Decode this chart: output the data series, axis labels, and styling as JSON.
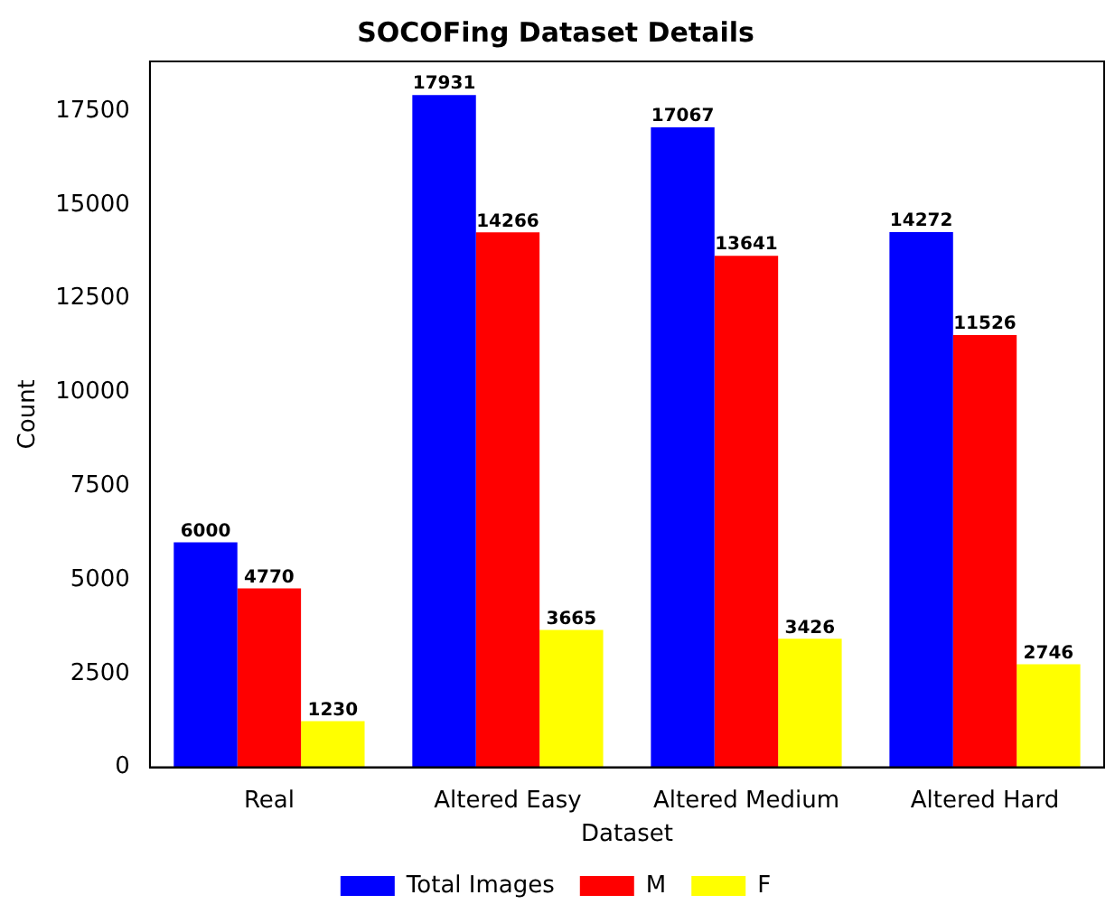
{
  "chart_data": {
    "type": "bar",
    "title": "SOCOFing Dataset Details",
    "xlabel": "Dataset",
    "ylabel": "Count",
    "categories": [
      "Real",
      "Altered Easy",
      "Altered Medium",
      "Altered Hard"
    ],
    "series": [
      {
        "name": "Total Images",
        "color": "#0000ff",
        "values": [
          6000,
          17931,
          17067,
          14272
        ]
      },
      {
        "name": "M",
        "color": "#ff0000",
        "values": [
          4770,
          14266,
          13641,
          11526
        ]
      },
      {
        "name": "F",
        "color": "#ffff00",
        "values": [
          1230,
          3665,
          3426,
          2746
        ]
      }
    ],
    "ylim": [
      0,
      18827
    ],
    "yticks": [
      0,
      2500,
      5000,
      7500,
      10000,
      12500,
      15000,
      17500
    ],
    "data_labels": true,
    "legend": "bottom",
    "grid": false
  }
}
